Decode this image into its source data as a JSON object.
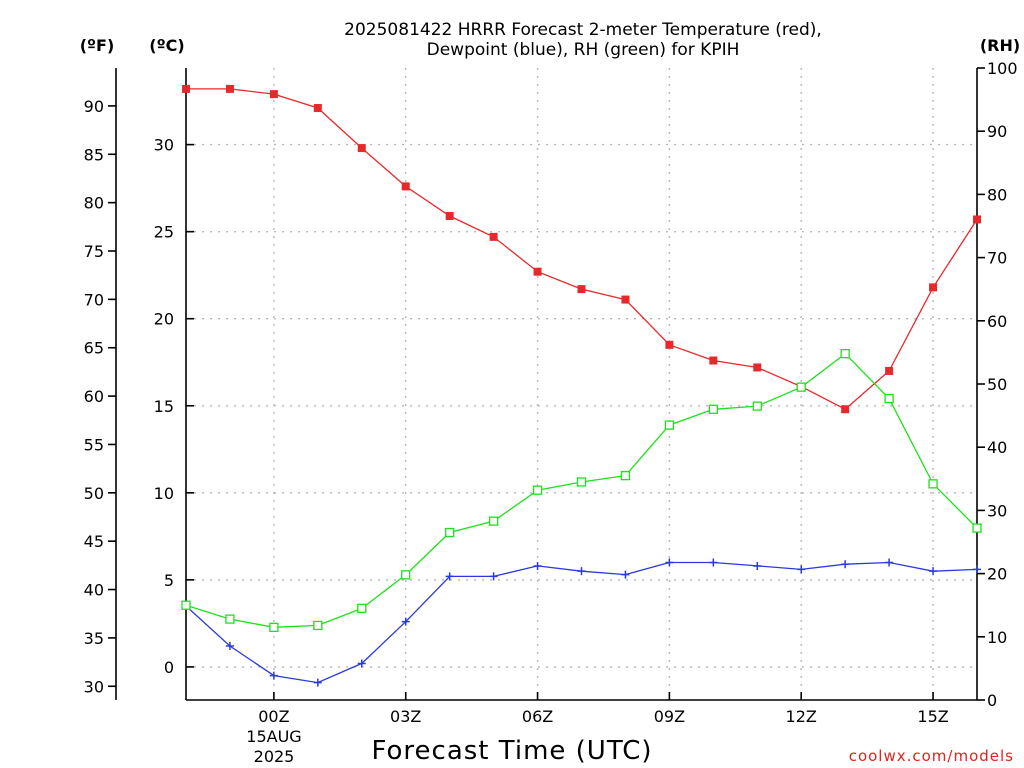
{
  "chart_data": {
    "type": "line",
    "title_lines": [
      "2025081422 HRRR Forecast 2-meter Temperature (red),",
      "Dewpoint (blue), RH (green) for KPIH"
    ],
    "units": {
      "fahrenheit": "(ºF)",
      "celsius": "(ºC)",
      "rh": "(RH)"
    },
    "xlabel": "Forecast Time (UTC)",
    "credit": "coolwx.com/models",
    "x_hours": [
      -2,
      -1,
      0,
      1,
      2,
      3,
      4,
      5,
      6,
      7,
      8,
      9,
      10,
      11,
      12,
      13,
      14,
      15,
      16
    ],
    "x_ticks": [
      {
        "hour": 0,
        "label": "00Z"
      },
      {
        "hour": 3,
        "label": "03Z"
      },
      {
        "hour": 6,
        "label": "06Z"
      },
      {
        "hour": 9,
        "label": "09Z"
      },
      {
        "hour": 12,
        "label": "12Z"
      },
      {
        "hour": 15,
        "label": "15Z"
      }
    ],
    "date_lines": [
      "15AUG",
      "2025"
    ],
    "celsius_range": [
      -1.9,
      34.4
    ],
    "celsius_ticks": [
      0,
      5,
      10,
      15,
      20,
      25,
      30
    ],
    "fahrenheit_ticks": [
      30,
      35,
      40,
      45,
      50,
      55,
      60,
      65,
      70,
      75,
      80,
      85,
      90
    ],
    "rh_range": [
      0,
      100
    ],
    "rh_ticks": [
      0,
      10,
      20,
      30,
      40,
      50,
      60,
      70,
      80,
      90,
      100
    ],
    "grid": true,
    "series": [
      {
        "name": "Temperature",
        "axis": "celsius",
        "color": "#e8282a",
        "marker": "filled-square",
        "values": [
          33.2,
          33.2,
          32.9,
          32.1,
          29.8,
          27.6,
          25.9,
          24.7,
          22.7,
          21.7,
          21.1,
          18.5,
          17.6,
          17.2,
          16.1,
          14.8,
          17.0,
          21.8,
          25.7
        ]
      },
      {
        "name": "Dewpoint",
        "axis": "celsius",
        "color": "#2a3ae0",
        "marker": "plus",
        "values": [
          3.5,
          1.2,
          -0.5,
          -0.9,
          0.2,
          2.6,
          5.2,
          5.2,
          5.8,
          5.5,
          5.3,
          6.0,
          6.0,
          5.8,
          5.6,
          5.9,
          6.0,
          5.5,
          5.6
        ]
      },
      {
        "name": "RH",
        "axis": "rh",
        "color": "#1ee01e",
        "marker": "open-square",
        "values": [
          15,
          12.8,
          11.5,
          11.8,
          14.5,
          19.8,
          26.5,
          28.3,
          33.2,
          34.5,
          35.5,
          43.5,
          46,
          46.5,
          49.5,
          54.8,
          47.7,
          34.2,
          27.2
        ]
      }
    ]
  }
}
